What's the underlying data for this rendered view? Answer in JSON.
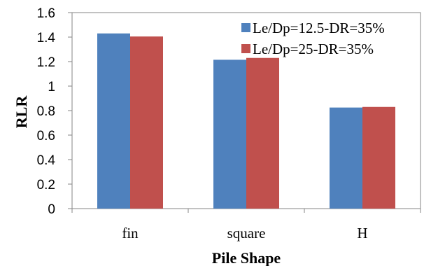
{
  "chart_data": {
    "type": "bar",
    "categories": [
      "fin",
      "square",
      "H"
    ],
    "series": [
      {
        "name": "Le/Dp=12.5-DR=35%",
        "values": [
          1.43,
          1.215,
          0.825
        ],
        "color": "#4F81BD"
      },
      {
        "name": "Le/Dp=25-DR=35%",
        "values": [
          1.405,
          1.23,
          0.83
        ],
        "color": "#C0504D"
      }
    ],
    "xlabel": "Pile Shape",
    "ylabel": "RLR",
    "ylim": [
      0,
      1.6
    ],
    "yticks": [
      "0",
      "0.2",
      "0.4",
      "0.6",
      "0.8",
      "1",
      "1.2",
      "1.4",
      "1.6"
    ],
    "grid": false,
    "legend_position": "top-right"
  }
}
